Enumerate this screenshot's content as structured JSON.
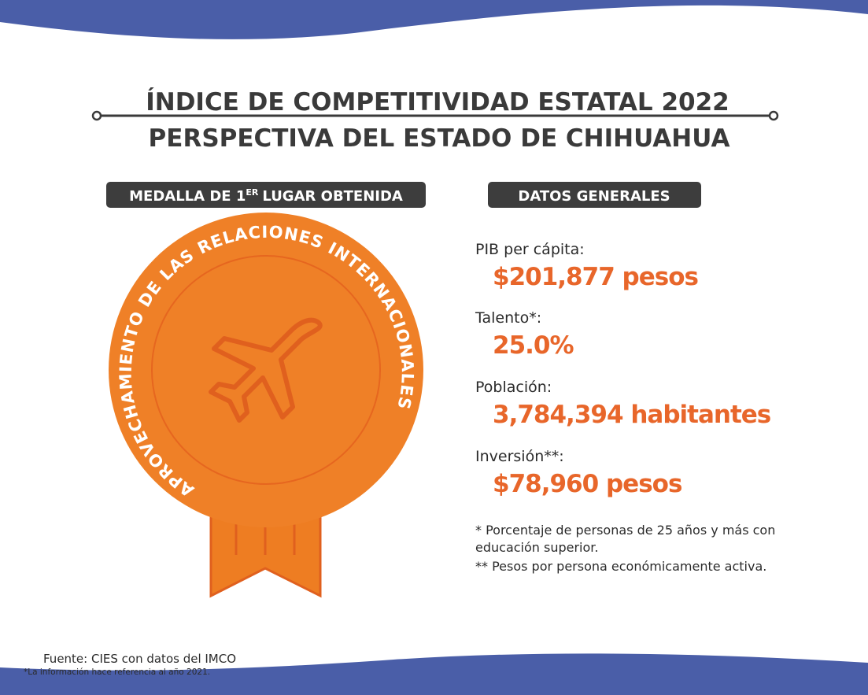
{
  "header": {
    "title_line1": "ÍNDICE DE COMPETITIVIDAD ESTATAL 2022",
    "title_line2": "PERSPECTIVA DEL ESTADO DE CHIHUAHUA"
  },
  "medal_section": {
    "heading_before": "MEDALLA  DE 1",
    "heading_sup": "ER",
    "heading_after": "LUGAR OBTENIDA",
    "medal_text": "APROVECHAMIENTO DE LAS RELACIONES INTERNACIONALES"
  },
  "data_section": {
    "heading": "DATOS GENERALES",
    "items": [
      {
        "label": "PIB per cápita:",
        "value": "$201,877 pesos"
      },
      {
        "label": "Talento*:",
        "value": "25.0%"
      },
      {
        "label": "Población:",
        "value": "3,784,394 habitantes"
      },
      {
        "label": "Inversión**:",
        "value": "$78,960 pesos"
      }
    ],
    "footnotes": [
      "* Porcentaje de personas de 25 años y más con",
      "educación superior.",
      "** Pesos por persona económicamente activa."
    ]
  },
  "footer": {
    "source": "Fuente: CIES con datos del IMCO",
    "note": "*La información hace referencia al año 2021."
  }
}
